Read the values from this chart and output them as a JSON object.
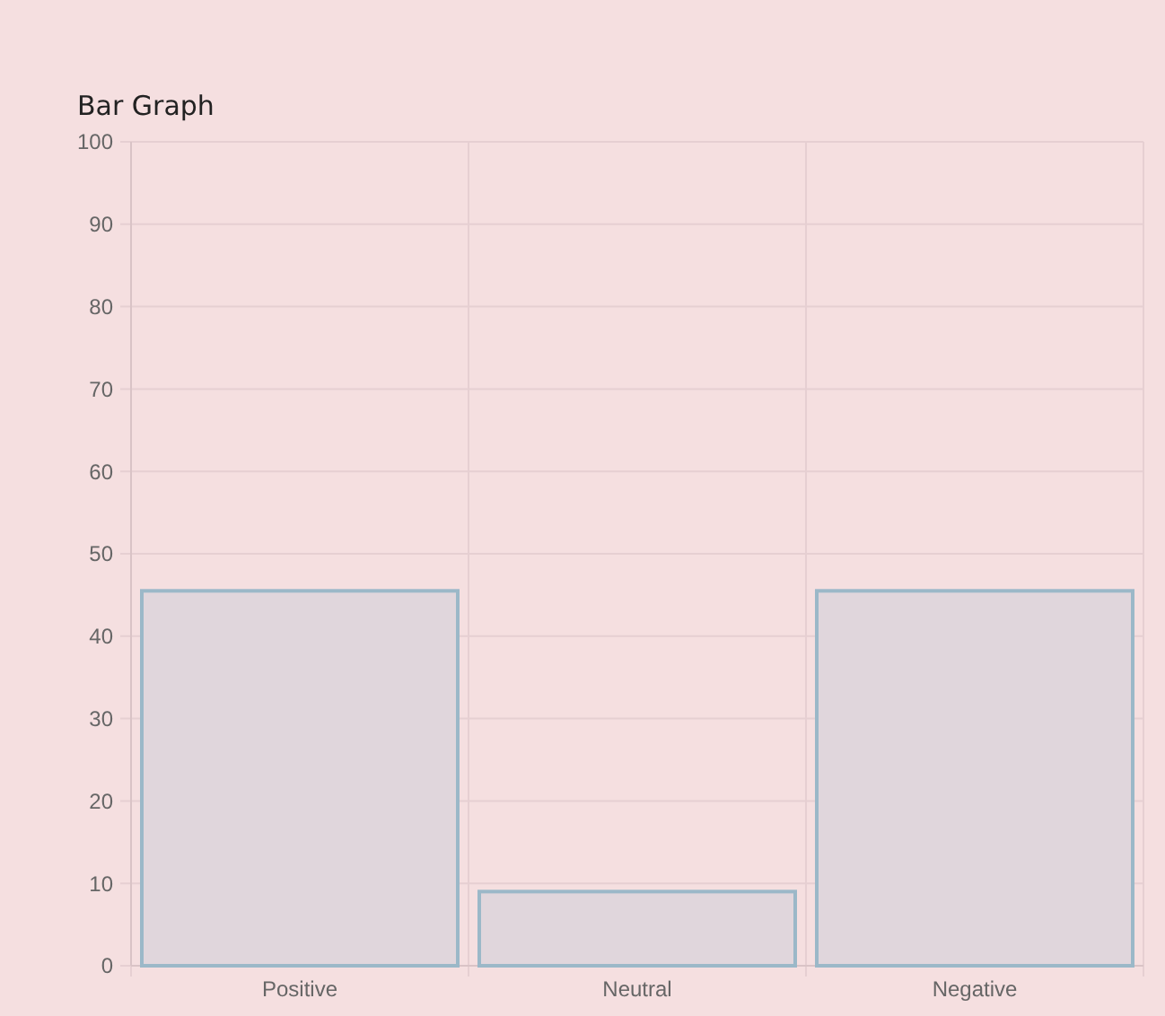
{
  "chart_data": {
    "type": "bar",
    "title": "Bar Graph",
    "categories": [
      "Positive",
      "Neutral",
      "Negative"
    ],
    "values": [
      45.5,
      9,
      45.5
    ],
    "color": "#9bb8c8",
    "ylim": [
      0,
      100
    ],
    "yticks": [
      0,
      10,
      20,
      30,
      40,
      50,
      60,
      70,
      80,
      90,
      100
    ],
    "grid": true
  }
}
